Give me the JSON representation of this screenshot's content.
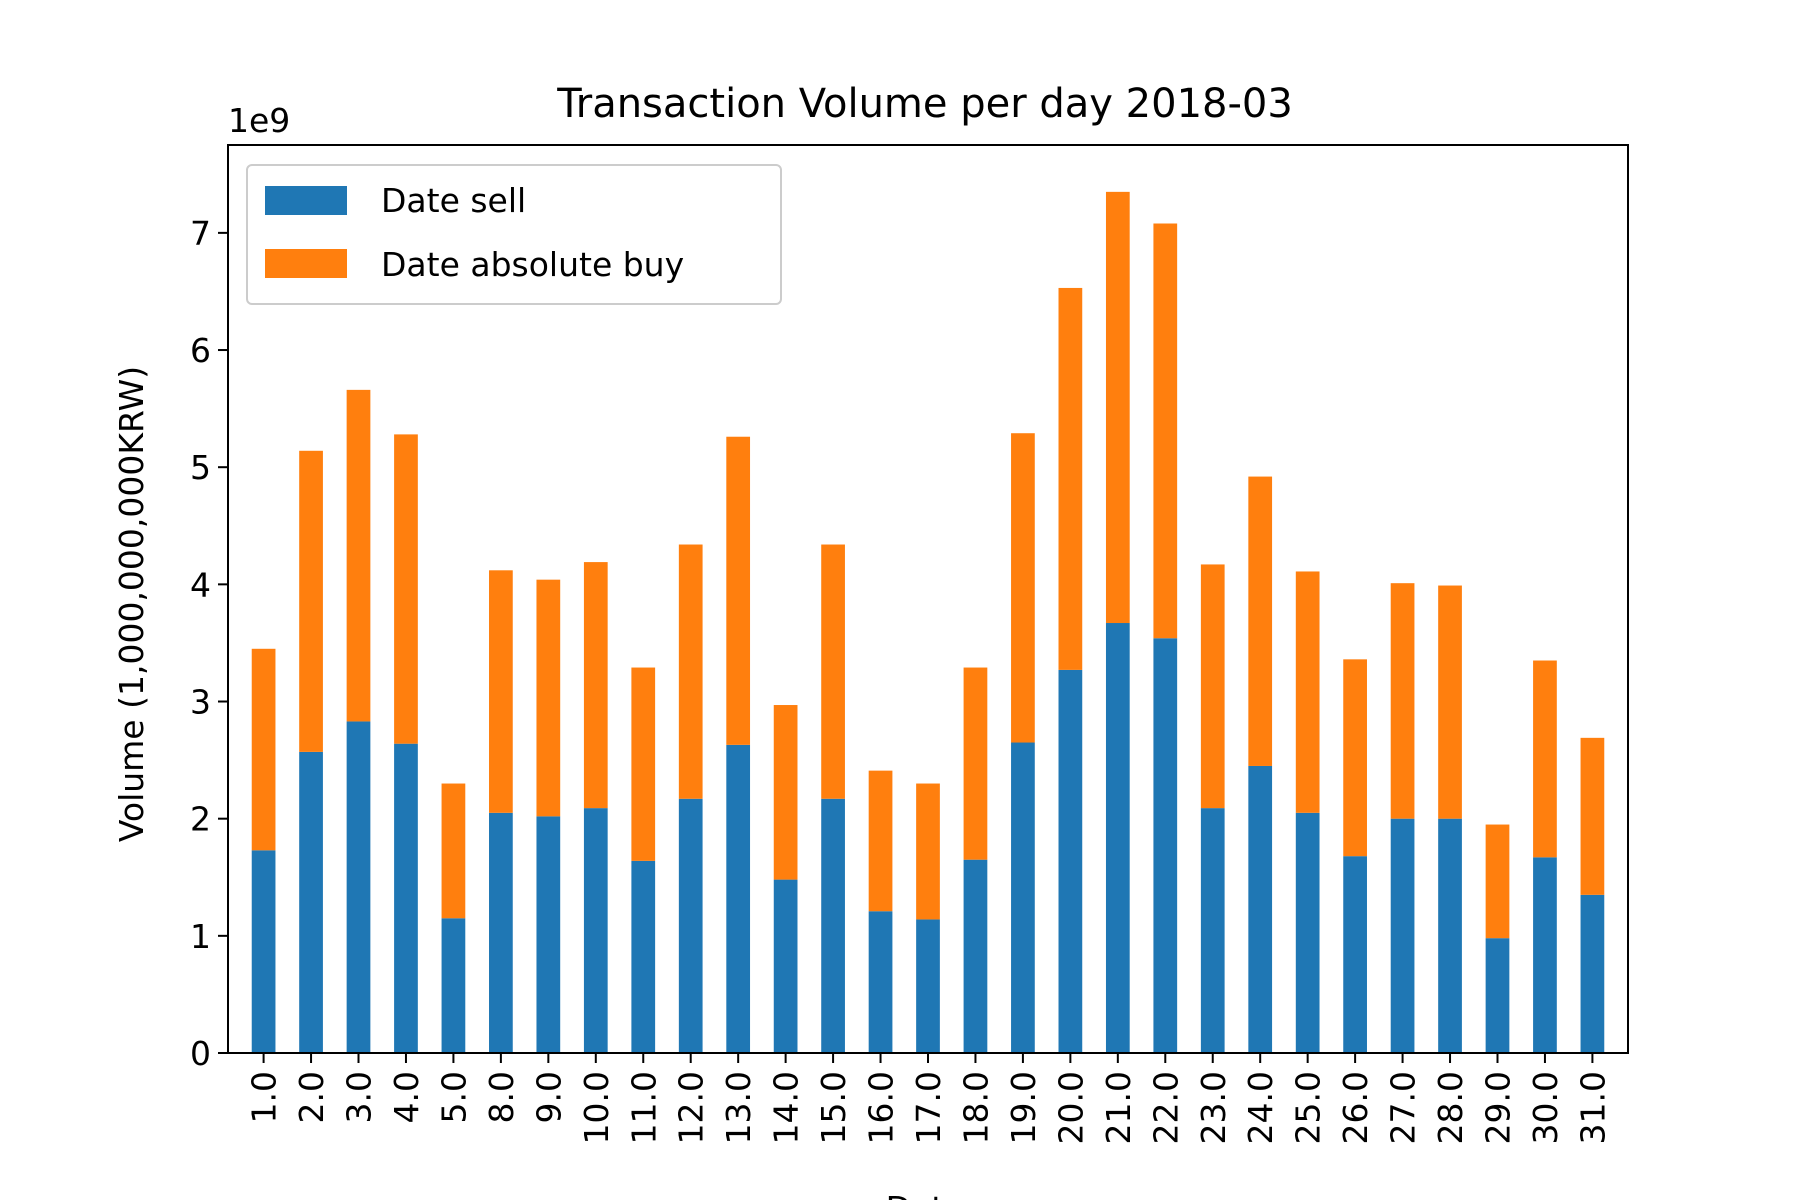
{
  "chart_data": {
    "type": "bar",
    "stacked": true,
    "title": "Transaction Volume per day 2018-03",
    "xlabel": "Date",
    "ylabel": "Volume (1,000,000,000KRW)",
    "y_offset_label": "1e9",
    "ylim": [
      0,
      7.75
    ],
    "yticks": [
      0,
      1,
      2,
      3,
      4,
      5,
      6,
      7
    ],
    "grid": false,
    "legend_position": "upper-left",
    "categories": [
      "1.0",
      "2.0",
      "3.0",
      "4.0",
      "5.0",
      "8.0",
      "9.0",
      "10.0",
      "11.0",
      "12.0",
      "13.0",
      "14.0",
      "15.0",
      "16.0",
      "17.0",
      "18.0",
      "19.0",
      "20.0",
      "21.0",
      "22.0",
      "23.0",
      "24.0",
      "25.0",
      "26.0",
      "27.0",
      "28.0",
      "29.0",
      "30.0",
      "31.0"
    ],
    "series": [
      {
        "name": "Date sell",
        "color": "#1f77b4",
        "values": [
          1.73,
          2.57,
          2.83,
          2.64,
          1.15,
          2.05,
          2.02,
          2.09,
          1.64,
          2.17,
          2.63,
          1.48,
          2.17,
          1.21,
          1.14,
          1.65,
          2.65,
          3.27,
          3.67,
          3.54,
          2.09,
          2.45,
          2.05,
          1.68,
          2.0,
          2.0,
          0.98,
          1.67,
          1.35
        ]
      },
      {
        "name": "Date absolute buy",
        "color": "#ff7f0e",
        "values": [
          1.72,
          2.57,
          2.83,
          2.64,
          1.15,
          2.07,
          2.02,
          2.1,
          1.65,
          2.17,
          2.63,
          1.49,
          2.17,
          1.2,
          1.16,
          1.64,
          2.64,
          3.26,
          3.68,
          3.54,
          2.08,
          2.47,
          2.06,
          1.68,
          2.01,
          1.99,
          0.97,
          1.68,
          1.34
        ]
      }
    ]
  }
}
